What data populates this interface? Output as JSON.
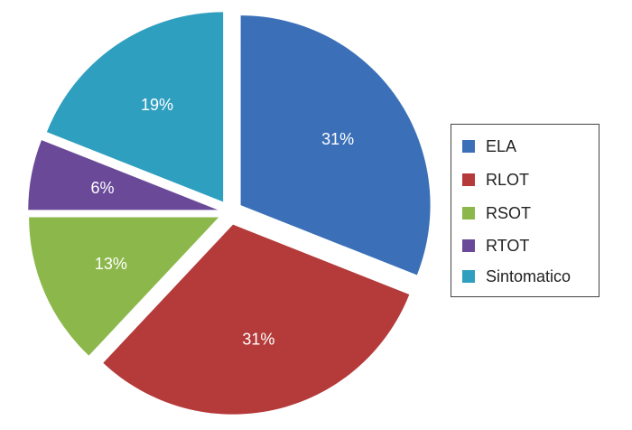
{
  "chart_data": {
    "type": "pie",
    "title": "",
    "categories": [
      "ELA",
      "RLOT",
      "RSOT",
      "RTOT",
      "Sintomatico"
    ],
    "values": [
      31,
      31,
      13,
      6,
      19
    ],
    "labels": [
      "31%",
      "31%",
      "13%",
      "6%",
      "19%"
    ],
    "colors": [
      "#3b70b8",
      "#b53a3a",
      "#8cb84b",
      "#6a4a98",
      "#2f9fbf"
    ],
    "exploded": true,
    "start_angle": "12 o'clock, clockwise",
    "legend_position": "right"
  }
}
